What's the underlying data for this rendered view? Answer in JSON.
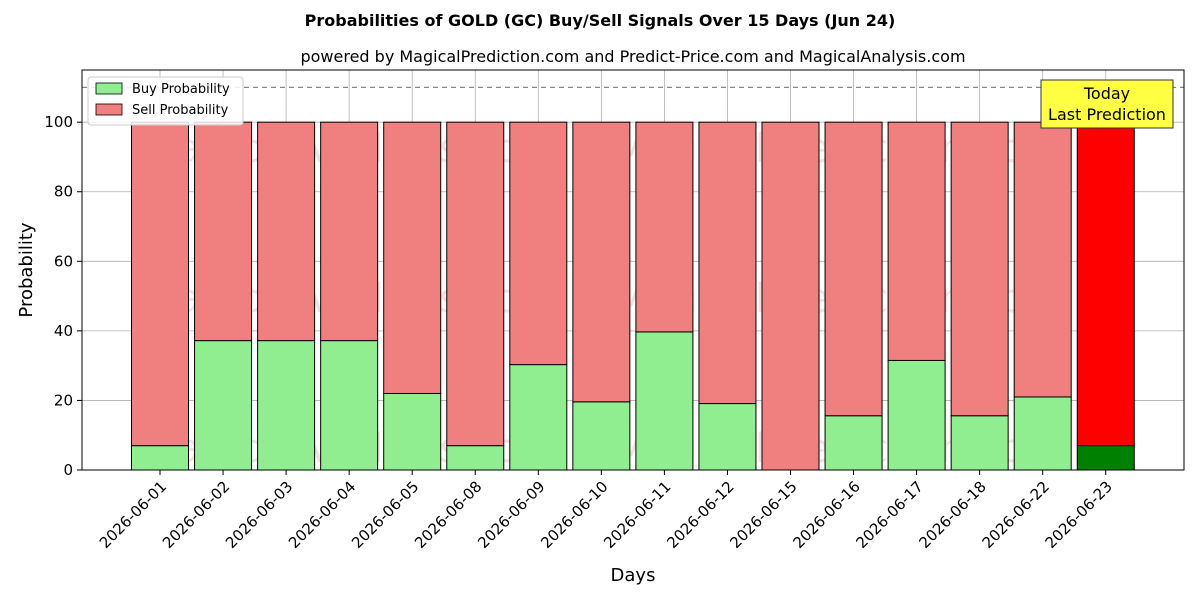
{
  "chart_data": {
    "type": "bar",
    "stacked": true,
    "title": "Probabilities of GOLD (GC) Buy/Sell Signals Over 15 Days (Jun 24)",
    "subtitle": "powered by MagicalPrediction.com and Predict-Price.com and MagicalAnalysis.com",
    "xlabel": "Days",
    "ylabel": "Probability",
    "ylim": [
      0,
      115
    ],
    "yticks": [
      0,
      20,
      40,
      60,
      80,
      100
    ],
    "reference_line": 110,
    "grid": true,
    "legend_position": "top-left",
    "categories": [
      "2026-06-01",
      "2026-06-02",
      "2026-06-03",
      "2026-06-04",
      "2026-06-05",
      "2026-06-08",
      "2026-06-09",
      "2026-06-10",
      "2026-06-11",
      "2026-06-12",
      "2026-06-15",
      "2026-06-16",
      "2026-06-17",
      "2026-06-18",
      "2026-06-22",
      "2026-06-23"
    ],
    "series": [
      {
        "name": "Buy Probability",
        "color": "#90ee90",
        "values": [
          7,
          37.2,
          37.2,
          37.2,
          22,
          7,
          30.3,
          19.6,
          39.7,
          19.1,
          0,
          15.6,
          31.5,
          15.6,
          21,
          7
        ]
      },
      {
        "name": "Sell Probability",
        "color": "#f08080",
        "values": [
          93,
          62.8,
          62.8,
          62.8,
          78,
          93,
          69.7,
          80.4,
          60.3,
          80.9,
          100,
          84.4,
          68.5,
          84.4,
          79,
          93
        ]
      }
    ],
    "highlight": {
      "index": 15,
      "buy_color": "#008000",
      "sell_color": "#ff0000"
    },
    "annotation": {
      "line1": "Today",
      "line2": "Last Prediction",
      "background": "#ffff44"
    },
    "watermarks": [
      "MagicalAnalysis.com",
      "MagicalPrediction.com"
    ]
  }
}
